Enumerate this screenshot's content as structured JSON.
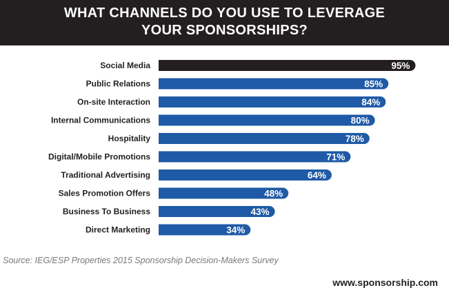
{
  "header": {
    "title_line1": "WHAT CHANNELS DO YOU USE TO LEVERAGE",
    "title_line2": "YOUR SPONSORSHIPS?"
  },
  "chart_data": {
    "type": "bar",
    "orientation": "horizontal",
    "title": "WHAT CHANNELS DO YOU USE TO LEVERAGE YOUR SPONSORSHIPS?",
    "categories": [
      "Social Media",
      "Public Relations",
      "On-site Interaction",
      "Internal Communications",
      "Hospitality",
      "Digital/Mobile Promotions",
      "Traditional Advertising",
      "Sales Promotion Offers",
      "Business To Business",
      "Direct Marketing"
    ],
    "values": [
      95,
      85,
      84,
      80,
      78,
      71,
      64,
      48,
      43,
      34
    ],
    "data_labels": [
      "95%",
      "85%",
      "84%",
      "80%",
      "78%",
      "71%",
      "64%",
      "48%",
      "43%",
      "34%"
    ],
    "unit": "%",
    "xlim": [
      0,
      100
    ],
    "highlight_index": 0,
    "grid": false,
    "legend": "none",
    "colors": {
      "highlight": "#231f20",
      "bar": "#1f5aa6",
      "label_text": "#ffffff",
      "category_text": "#231f20"
    }
  },
  "footer": {
    "source": "Source: IEG/ESP Properties 2015 Sponsorship Decision-Makers Survey",
    "website": "www.sponsorship.com"
  }
}
